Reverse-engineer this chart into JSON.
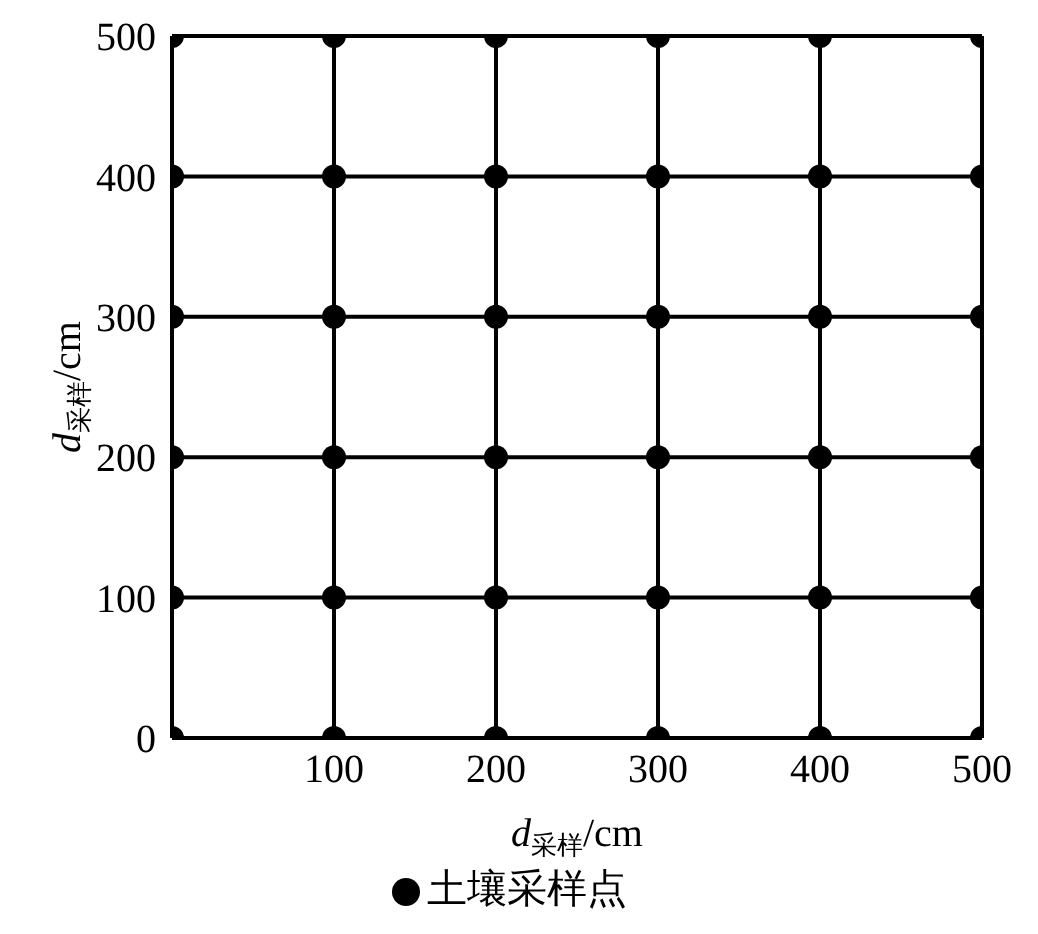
{
  "chart_data": {
    "type": "scatter",
    "xlabel": "d$_{采样}$/cm",
    "ylabel": "d$_{采样}$/cm",
    "xlim": [
      0,
      500
    ],
    "ylim": [
      0,
      500
    ],
    "xticks": [
      {
        "value": 0,
        "label": null
      },
      100,
      200,
      300,
      400,
      500
    ],
    "yticks": [
      0,
      100,
      200,
      300,
      400,
      500
    ],
    "grid": true,
    "legend": "bottom",
    "marker": "circle",
    "series": [
      {
        "name": "土壤采样点",
        "color": "#000000",
        "x": [
          0,
          100,
          200,
          300,
          400,
          500,
          0,
          100,
          200,
          300,
          400,
          500,
          0,
          100,
          200,
          300,
          400,
          500,
          0,
          100,
          200,
          300,
          400,
          500,
          0,
          100,
          200,
          300,
          400,
          500,
          0,
          100,
          200,
          300,
          400,
          500
        ],
        "values": [
          0,
          0,
          0,
          0,
          0,
          0,
          100,
          100,
          100,
          100,
          100,
          100,
          200,
          200,
          200,
          200,
          200,
          200,
          300,
          300,
          300,
          300,
          300,
          300,
          400,
          400,
          400,
          400,
          400,
          400,
          500,
          500,
          500,
          500,
          500,
          500
        ]
      }
    ]
  }
}
